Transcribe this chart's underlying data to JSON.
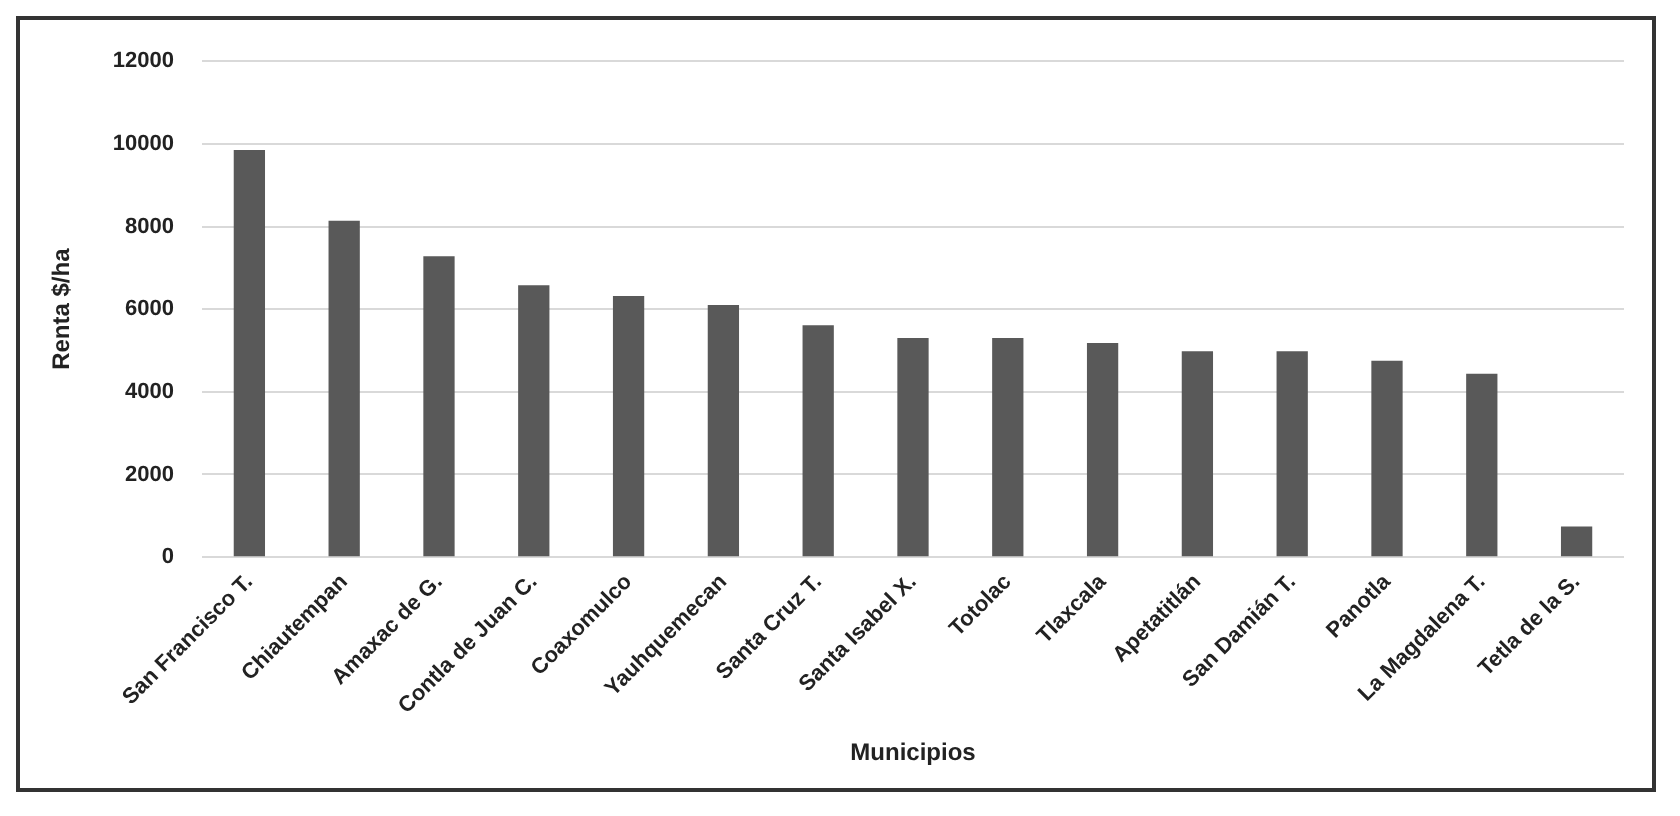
{
  "chart_data": {
    "type": "bar",
    "xlabel": "Municipios",
    "ylabel": "Renta $/ha",
    "categories": [
      "San Francisco T.",
      "Chiautempan",
      "Amaxac de G.",
      "Contla de Juan C.",
      "Coaxomulco",
      "Yauhquemecan",
      "Santa Cruz T.",
      "Santa Isabel X.",
      "Totolac",
      "Tlaxcala",
      "Apetatitlán",
      "San Damián T.",
      "Panotla",
      "La Magdalena T.",
      "Tetla de la S."
    ],
    "values": [
      9850,
      8140,
      7280,
      6580,
      6320,
      6100,
      5610,
      5300,
      5300,
      5180,
      4980,
      4980,
      4750,
      4440,
      740
    ],
    "color": "#595959",
    "ylim": [
      0,
      12000
    ],
    "yticks": [
      0,
      2000,
      4000,
      6000,
      8000,
      10000,
      12000
    ],
    "grid": "y",
    "legend": false
  }
}
